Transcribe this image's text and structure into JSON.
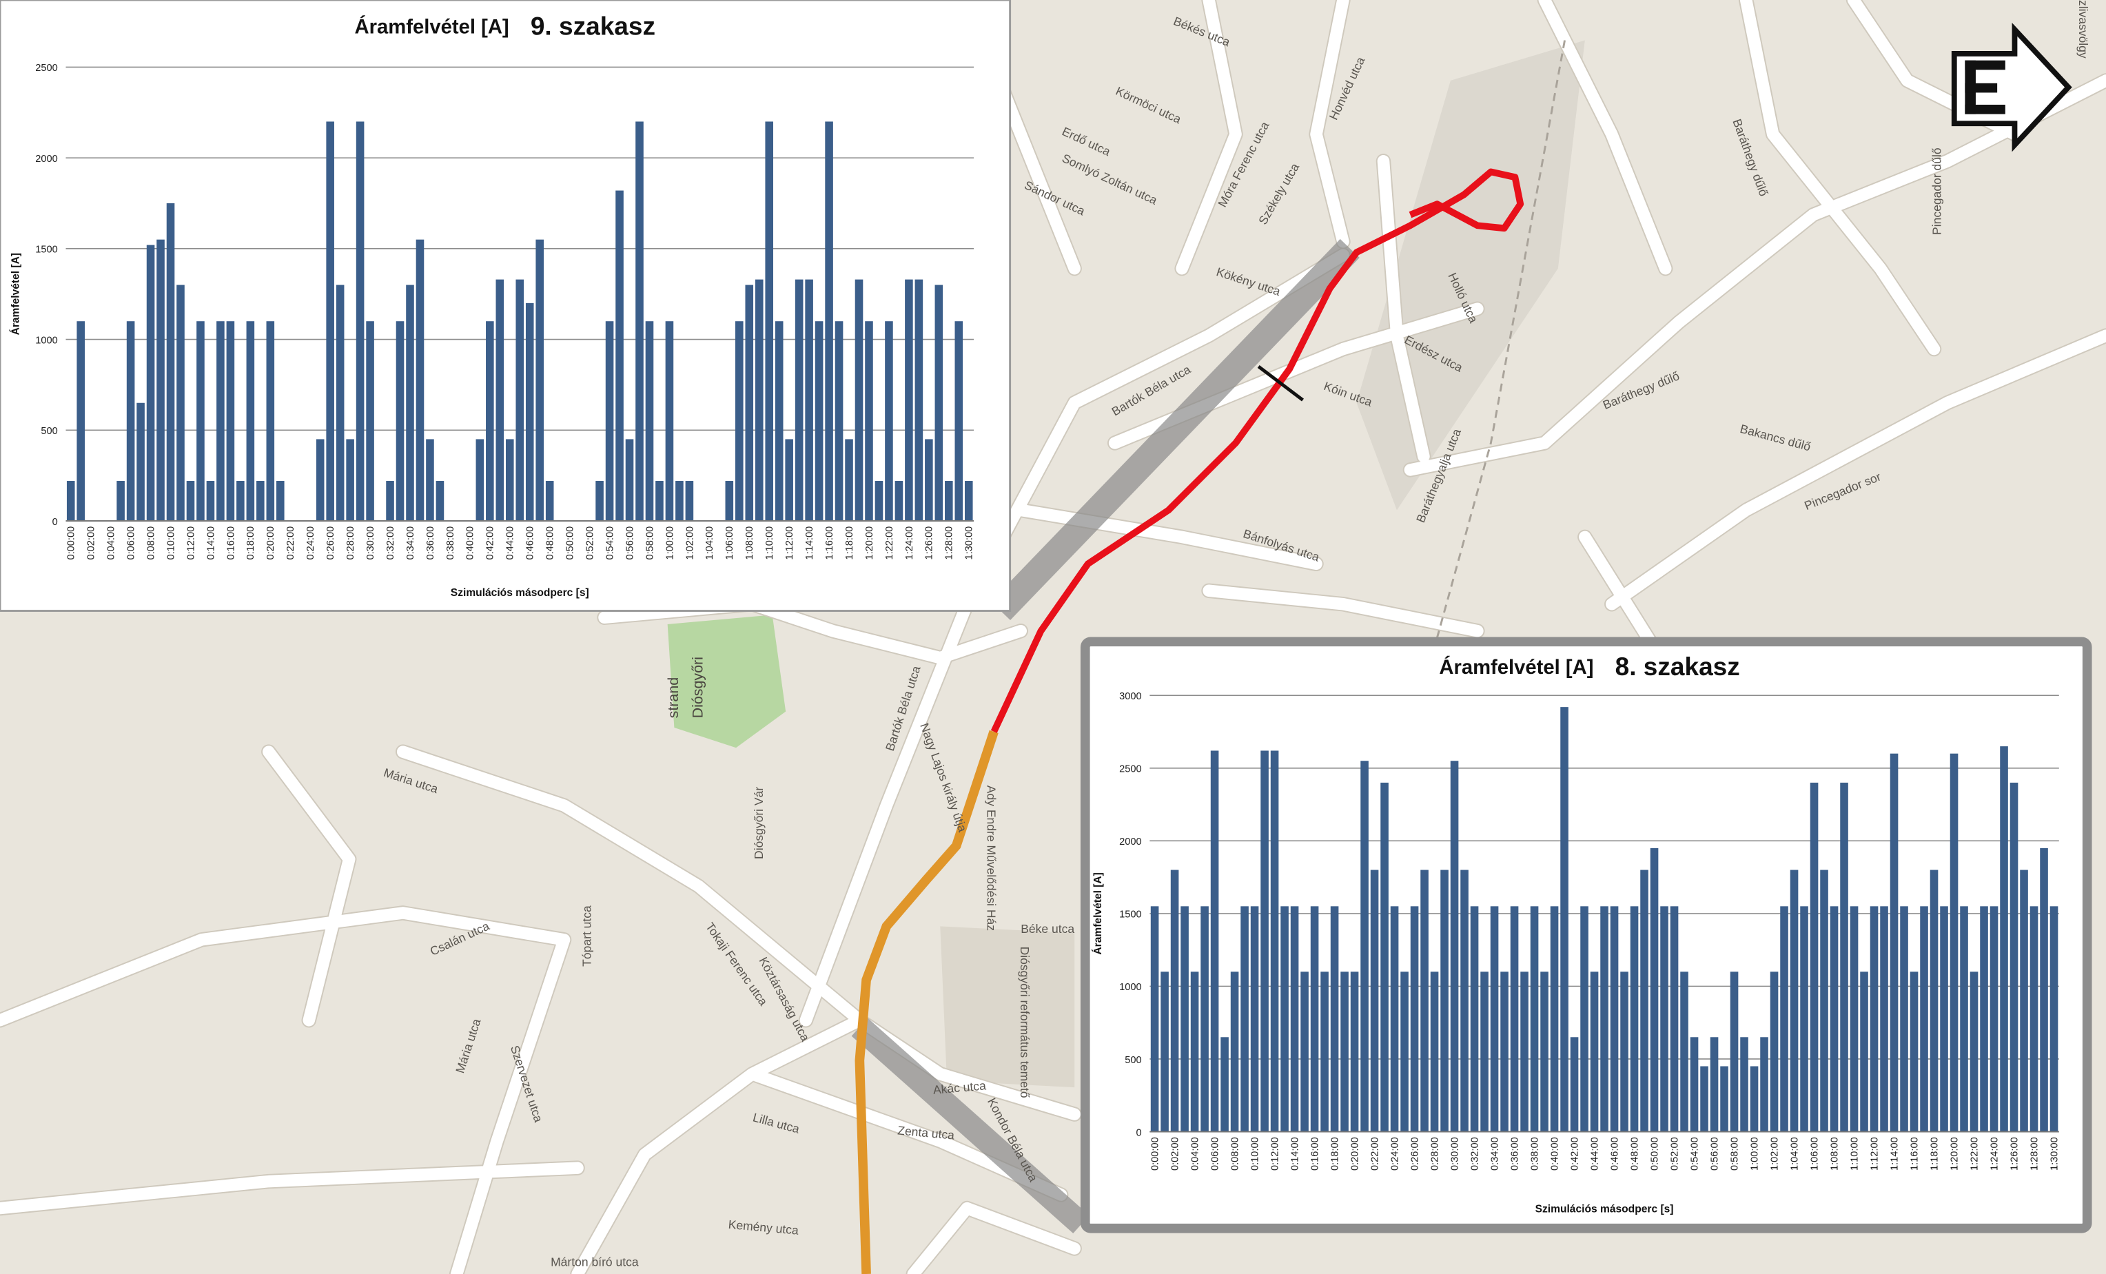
{
  "chart_data": [
    {
      "type": "bar",
      "title": "Áramfelvétel [A]",
      "subtitle": "9. szakasz",
      "x_label": "Szimulációs másodperc [s]",
      "y_label": "Áramfelvétel [A]",
      "color": "#3b5e8a",
      "grid": true,
      "ylim": [
        0,
        2500
      ],
      "yticks": [
        0,
        500,
        1000,
        1500,
        2000,
        2500
      ],
      "categories": [
        "0:00:00",
        null,
        "0:02:00",
        null,
        "0:04:00",
        null,
        "0:06:00",
        null,
        "0:08:00",
        null,
        "0:10:00",
        null,
        "0:12:00",
        null,
        "0:14:00",
        null,
        "0:16:00",
        null,
        "0:18:00",
        null,
        "0:20:00",
        null,
        "0:22:00",
        null,
        "0:24:00",
        null,
        "0:26:00",
        null,
        "0:28:00",
        null,
        "0:30:00",
        null,
        "0:32:00",
        null,
        "0:34:00",
        null,
        "0:36:00",
        null,
        "0:38:00",
        null,
        "0:40:00",
        null,
        "0:42:00",
        null,
        "0:44:00",
        null,
        "0:46:00",
        null,
        "0:48:00",
        null,
        "0:50:00",
        null,
        "0:52:00",
        null,
        "0:54:00",
        null,
        "0:56:00",
        null,
        "0:58:00",
        null,
        "1:00:00",
        null,
        "1:02:00",
        null,
        "1:04:00",
        null,
        "1:06:00",
        null,
        "1:08:00",
        null,
        "1:10:00",
        null,
        "1:12:00",
        null,
        "1:14:00",
        null,
        "1:16:00",
        null,
        "1:18:00",
        null,
        "1:20:00",
        null,
        "1:22:00",
        null,
        "1:24:00",
        null,
        "1:26:00",
        null,
        "1:28:00",
        null,
        "1:30:00"
      ],
      "values": [
        220,
        1100,
        0,
        0,
        0,
        220,
        1100,
        650,
        1520,
        1550,
        1750,
        1300,
        220,
        1100,
        220,
        1100,
        1100,
        220,
        1100,
        220,
        1100,
        220,
        0,
        0,
        0,
        450,
        2200,
        1300,
        450,
        2200,
        1100,
        0,
        220,
        1100,
        1300,
        1550,
        450,
        220,
        0,
        0,
        0,
        450,
        1100,
        1330,
        450,
        1330,
        1200,
        1550,
        220,
        0,
        0,
        0,
        0,
        220,
        1100,
        1820,
        450,
        2200,
        1100,
        220,
        1100,
        220,
        220,
        0,
        0,
        0,
        220,
        1100,
        1300,
        1330,
        2200,
        1100,
        450,
        1330,
        1330,
        1100,
        2200,
        1100,
        450,
        1330,
        1100,
        220,
        1100,
        220,
        1330,
        1330,
        450,
        1300,
        220,
        1100,
        220
      ]
    },
    {
      "type": "bar",
      "title": "Áramfelvétel [A]",
      "subtitle": "8. szakasz",
      "x_label": "Szimulációs másodperc [s]",
      "y_label": "Áramfelvétel [A]",
      "color": "#3b5e8a",
      "grid": true,
      "ylim": [
        0,
        3000
      ],
      "yticks": [
        0,
        500,
        1000,
        1500,
        2000,
        2500,
        3000
      ],
      "categories": [
        "0:00:00",
        null,
        "0:02:00",
        null,
        "0:04:00",
        null,
        "0:06:00",
        null,
        "0:08:00",
        null,
        "0:10:00",
        null,
        "0:12:00",
        null,
        "0:14:00",
        null,
        "0:16:00",
        null,
        "0:18:00",
        null,
        "0:20:00",
        null,
        "0:22:00",
        null,
        "0:24:00",
        null,
        "0:26:00",
        null,
        "0:28:00",
        null,
        "0:30:00",
        null,
        "0:32:00",
        null,
        "0:34:00",
        null,
        "0:36:00",
        null,
        "0:38:00",
        null,
        "0:40:00",
        null,
        "0:42:00",
        null,
        "0:44:00",
        null,
        "0:46:00",
        null,
        "0:48:00",
        null,
        "0:50:00",
        null,
        "0:52:00",
        null,
        "0:54:00",
        null,
        "0:56:00",
        null,
        "0:58:00",
        null,
        "1:00:00",
        null,
        "1:02:00",
        null,
        "1:04:00",
        null,
        "1:06:00",
        null,
        "1:08:00",
        null,
        "1:10:00",
        null,
        "1:12:00",
        null,
        "1:14:00",
        null,
        "1:16:00",
        null,
        "1:18:00",
        null,
        "1:20:00",
        null,
        "1:22:00",
        null,
        "1:24:00",
        null,
        "1:26:00",
        null,
        "1:28:00",
        null,
        "1:30:00"
      ],
      "values": [
        1550,
        1100,
        1800,
        1550,
        1100,
        1550,
        2620,
        650,
        1100,
        1550,
        1550,
        2620,
        2620,
        1550,
        1550,
        1100,
        1550,
        1100,
        1550,
        1100,
        1100,
        2550,
        1800,
        2400,
        1550,
        1100,
        1550,
        1800,
        1100,
        1800,
        2550,
        1800,
        1550,
        1100,
        1550,
        1100,
        1550,
        1100,
        1550,
        1100,
        1550,
        2920,
        650,
        1550,
        1100,
        1550,
        1550,
        1100,
        1550,
        1800,
        1950,
        1550,
        1550,
        1100,
        650,
        450,
        650,
        450,
        1100,
        650,
        450,
        650,
        1100,
        1550,
        1800,
        1550,
        2400,
        1800,
        1550,
        2400,
        1550,
        1100,
        1550,
        1550,
        2600,
        1550,
        1100,
        1550,
        1800,
        1550,
        2600,
        1550,
        1100,
        1550,
        1550,
        2650,
        2400,
        1800,
        1550,
        1950,
        1550
      ]
    }
  ],
  "map": {
    "labels": [
      "Békés utca",
      "Körmöci utca",
      "Erdő utca",
      "Somlyó Zoltán utca",
      "Sándor utca",
      "Móra Ferenc utca",
      "Honvéd utca",
      "Székely utca",
      "Kökény utca",
      "Bartók Béla utca",
      "Holló utca",
      "Erdész utca",
      "Kóin utca",
      "Baráthegyalja utca",
      "Bánfolyás utca",
      "Diósgyőri",
      "strand",
      "Diósgyőri Vár",
      "Bartók Béla utca",
      "Nagy Lajos király útja",
      "Tokaji Ferenc utca",
      "Mária utca",
      "Tópart utca",
      "Csalán utca",
      "Mária utca",
      "Szervezet utca",
      "Köztársaság utca",
      "Lilla utca",
      "Zenta utca",
      "Akác utca",
      "Kondor Béla utca",
      "Béke utca",
      "Ady Endre Művelődési Ház",
      "Diósgyőri református temető",
      "Kemény utca",
      "Márton bíró utca",
      "Baráthegy dűlő",
      "Bakancs dűlő",
      "Pincegador dűlő",
      "Pincegador sor",
      "Baráthegy dűlő",
      "zlivasvölgy"
    ]
  }
}
